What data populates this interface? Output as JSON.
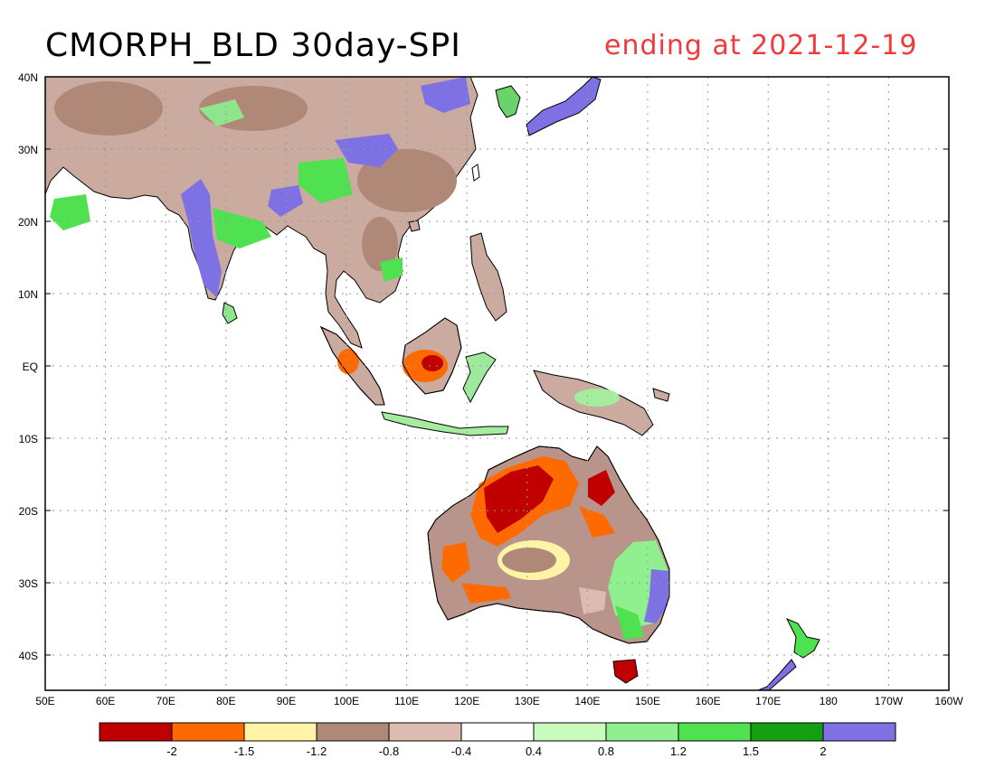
{
  "title": {
    "main": "CMORPH_BLD 30day-SPI",
    "date": "ending at 2021-12-19"
  },
  "axes": {
    "lat_labels": [
      "40N",
      "30N",
      "20N",
      "10N",
      "EQ",
      "10S",
      "20S",
      "30S",
      "40S"
    ],
    "lon_labels": [
      "50E",
      "60E",
      "70E",
      "80E",
      "90E",
      "100E",
      "110E",
      "120E",
      "130E",
      "140E",
      "150E",
      "160E",
      "170E",
      "180",
      "170W",
      "160W"
    ]
  },
  "legend": {
    "tick_labels": [
      "-2",
      "-1.5",
      "-1.2",
      "-0.8",
      "-0.4",
      "0.4",
      "0.8",
      "1.2",
      "1.5",
      "2"
    ],
    "colors": [
      "#c00000",
      "#ff6a00",
      "#fff4a6",
      "#b08878",
      "#ddbbb0",
      "#ffffff",
      "#c9fbbf",
      "#90ef8e",
      "#4fe14f",
      "#129f12",
      "#7d71e4"
    ]
  },
  "colors": {
    "date_text": "#ef3b3b",
    "grid": "#999999",
    "coast": "#000000"
  }
}
